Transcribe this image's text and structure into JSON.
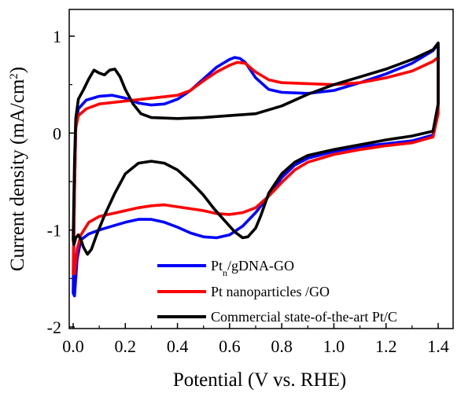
{
  "chart_data": {
    "type": "line",
    "xlabel": "Potential (V vs. RHE)",
    "ylabel": {
      "main": "Current density (mA/cm",
      "sup": "2",
      "close": ")"
    },
    "xlim": [
      0.0,
      1.4
    ],
    "ylim": [
      -2,
      1.2
    ],
    "x_ticks": [
      "0.0",
      "0.2",
      "0.4",
      "0.6",
      "0.8",
      "1.0",
      "1.2",
      "1.4"
    ],
    "y_ticks": [
      "1",
      "0",
      "-1",
      "-2"
    ],
    "legend_position": "bottom-right",
    "series": [
      {
        "name": "Pt_n/gDNA-GO",
        "legend": {
          "main": "Pt",
          "sub": "n",
          "rest": "/gDNA-GO"
        },
        "color": "#0000ff",
        "points": [
          [
            0.0,
            -1.65
          ],
          [
            0.005,
            -0.6
          ],
          [
            0.01,
            0.05
          ],
          [
            0.02,
            0.25
          ],
          [
            0.05,
            0.34
          ],
          [
            0.1,
            0.38
          ],
          [
            0.15,
            0.39
          ],
          [
            0.2,
            0.36
          ],
          [
            0.25,
            0.31
          ],
          [
            0.3,
            0.29
          ],
          [
            0.35,
            0.3
          ],
          [
            0.4,
            0.35
          ],
          [
            0.45,
            0.44
          ],
          [
            0.5,
            0.56
          ],
          [
            0.55,
            0.68
          ],
          [
            0.6,
            0.76
          ],
          [
            0.62,
            0.78
          ],
          [
            0.64,
            0.77
          ],
          [
            0.66,
            0.73
          ],
          [
            0.7,
            0.57
          ],
          [
            0.75,
            0.45
          ],
          [
            0.8,
            0.42
          ],
          [
            0.9,
            0.41
          ],
          [
            1.0,
            0.44
          ],
          [
            1.1,
            0.52
          ],
          [
            1.2,
            0.61
          ],
          [
            1.3,
            0.72
          ],
          [
            1.38,
            0.85
          ],
          [
            1.4,
            0.92
          ],
          [
            1.4,
            0.3
          ],
          [
            1.38,
            -0.02
          ],
          [
            1.3,
            -0.08
          ],
          [
            1.2,
            -0.11
          ],
          [
            1.1,
            -0.14
          ],
          [
            1.0,
            -0.19
          ],
          [
            0.9,
            -0.26
          ],
          [
            0.85,
            -0.33
          ],
          [
            0.8,
            -0.46
          ],
          [
            0.75,
            -0.65
          ],
          [
            0.7,
            -0.82
          ],
          [
            0.65,
            -0.96
          ],
          [
            0.6,
            -1.05
          ],
          [
            0.55,
            -1.08
          ],
          [
            0.5,
            -1.07
          ],
          [
            0.45,
            -1.03
          ],
          [
            0.4,
            -0.97
          ],
          [
            0.35,
            -0.92
          ],
          [
            0.3,
            -0.89
          ],
          [
            0.25,
            -0.89
          ],
          [
            0.2,
            -0.92
          ],
          [
            0.15,
            -0.96
          ],
          [
            0.1,
            -1.0
          ],
          [
            0.06,
            -1.04
          ],
          [
            0.03,
            -1.1
          ],
          [
            0.015,
            -1.3
          ],
          [
            0.005,
            -1.68
          ]
        ]
      },
      {
        "name": "Pt nanoparticles /GO",
        "legend": {
          "main": "Pt nanoparticles /GO",
          "sub": "",
          "rest": ""
        },
        "color": "#ff0000",
        "points": [
          [
            0.0,
            -1.45
          ],
          [
            0.005,
            -0.6
          ],
          [
            0.01,
            0.05
          ],
          [
            0.02,
            0.18
          ],
          [
            0.05,
            0.25
          ],
          [
            0.1,
            0.3
          ],
          [
            0.2,
            0.33
          ],
          [
            0.3,
            0.36
          ],
          [
            0.4,
            0.39
          ],
          [
            0.45,
            0.44
          ],
          [
            0.5,
            0.54
          ],
          [
            0.55,
            0.63
          ],
          [
            0.6,
            0.7
          ],
          [
            0.63,
            0.73
          ],
          [
            0.66,
            0.72
          ],
          [
            0.7,
            0.63
          ],
          [
            0.75,
            0.55
          ],
          [
            0.8,
            0.52
          ],
          [
            0.9,
            0.51
          ],
          [
            1.0,
            0.5
          ],
          [
            1.1,
            0.52
          ],
          [
            1.2,
            0.57
          ],
          [
            1.3,
            0.64
          ],
          [
            1.38,
            0.74
          ],
          [
            1.4,
            0.78
          ],
          [
            1.4,
            0.2
          ],
          [
            1.38,
            -0.04
          ],
          [
            1.3,
            -0.1
          ],
          [
            1.2,
            -0.13
          ],
          [
            1.1,
            -0.17
          ],
          [
            1.0,
            -0.22
          ],
          [
            0.9,
            -0.3
          ],
          [
            0.85,
            -0.38
          ],
          [
            0.8,
            -0.51
          ],
          [
            0.75,
            -0.65
          ],
          [
            0.7,
            -0.77
          ],
          [
            0.65,
            -0.82
          ],
          [
            0.6,
            -0.84
          ],
          [
            0.55,
            -0.83
          ],
          [
            0.5,
            -0.8
          ],
          [
            0.45,
            -0.78
          ],
          [
            0.4,
            -0.76
          ],
          [
            0.35,
            -0.74
          ],
          [
            0.3,
            -0.75
          ],
          [
            0.25,
            -0.77
          ],
          [
            0.2,
            -0.8
          ],
          [
            0.15,
            -0.83
          ],
          [
            0.1,
            -0.86
          ],
          [
            0.06,
            -0.92
          ],
          [
            0.03,
            -1.05
          ],
          [
            0.015,
            -1.2
          ],
          [
            0.005,
            -1.45
          ]
        ]
      },
      {
        "name": "Commercial state-of-the-art Pt/C",
        "legend": {
          "main": "Commercial state-of-the-art Pt/C",
          "sub": "",
          "rest": ""
        },
        "color": "#000000",
        "points": [
          [
            0.0,
            -1.1
          ],
          [
            0.005,
            -0.3
          ],
          [
            0.01,
            0.15
          ],
          [
            0.02,
            0.35
          ],
          [
            0.04,
            0.45
          ],
          [
            0.06,
            0.56
          ],
          [
            0.08,
            0.65
          ],
          [
            0.1,
            0.62
          ],
          [
            0.12,
            0.6
          ],
          [
            0.14,
            0.65
          ],
          [
            0.16,
            0.66
          ],
          [
            0.18,
            0.58
          ],
          [
            0.2,
            0.45
          ],
          [
            0.23,
            0.3
          ],
          [
            0.26,
            0.2
          ],
          [
            0.3,
            0.16
          ],
          [
            0.4,
            0.15
          ],
          [
            0.5,
            0.16
          ],
          [
            0.6,
            0.18
          ],
          [
            0.7,
            0.2
          ],
          [
            0.8,
            0.28
          ],
          [
            0.9,
            0.4
          ],
          [
            1.0,
            0.5
          ],
          [
            1.1,
            0.58
          ],
          [
            1.2,
            0.66
          ],
          [
            1.3,
            0.76
          ],
          [
            1.38,
            0.86
          ],
          [
            1.4,
            0.93
          ],
          [
            1.4,
            0.3
          ],
          [
            1.38,
            0.02
          ],
          [
            1.3,
            -0.03
          ],
          [
            1.2,
            -0.07
          ],
          [
            1.1,
            -0.12
          ],
          [
            1.0,
            -0.17
          ],
          [
            0.9,
            -0.23
          ],
          [
            0.85,
            -0.3
          ],
          [
            0.8,
            -0.42
          ],
          [
            0.75,
            -0.62
          ],
          [
            0.72,
            -0.85
          ],
          [
            0.7,
            -0.98
          ],
          [
            0.67,
            -1.07
          ],
          [
            0.65,
            -1.08
          ],
          [
            0.62,
            -1.02
          ],
          [
            0.58,
            -0.9
          ],
          [
            0.54,
            -0.78
          ],
          [
            0.5,
            -0.64
          ],
          [
            0.45,
            -0.5
          ],
          [
            0.4,
            -0.38
          ],
          [
            0.35,
            -0.31
          ],
          [
            0.3,
            -0.29
          ],
          [
            0.25,
            -0.31
          ],
          [
            0.2,
            -0.42
          ],
          [
            0.16,
            -0.62
          ],
          [
            0.12,
            -0.85
          ],
          [
            0.09,
            -1.05
          ],
          [
            0.07,
            -1.2
          ],
          [
            0.055,
            -1.25
          ],
          [
            0.04,
            -1.18
          ],
          [
            0.03,
            -1.1
          ],
          [
            0.02,
            -1.05
          ],
          [
            0.01,
            -1.08
          ],
          [
            0.003,
            -1.15
          ]
        ]
      }
    ]
  }
}
